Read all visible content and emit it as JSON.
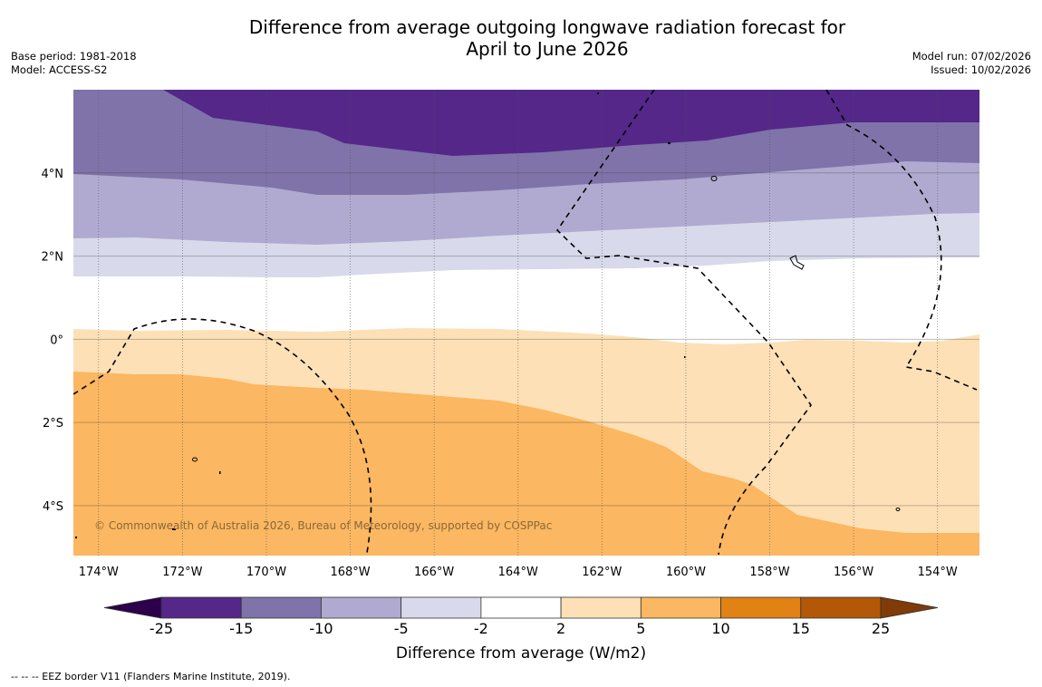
{
  "title": {
    "line1": "Difference from average outgoing longwave radiation forecast for",
    "line2": "April to June 2026"
  },
  "meta_left": {
    "base_period": "Base period: 1981-2018",
    "model": "Model: ACCESS-S2"
  },
  "meta_right": {
    "model_run": "Model run: 07/02/2026",
    "issued": "Issued: 10/02/2026"
  },
  "map": {
    "copyright": "© Commonwealth of Australia 2026, Bureau of Meteorology, supported by COSPPac",
    "extent": {
      "lon_min": -174.6,
      "lon_max": -153.0,
      "lat_min": -5.2,
      "lat_max": 6.0
    },
    "lat_ticks": [
      {
        "value": 4,
        "label": "4°N"
      },
      {
        "value": 2,
        "label": "2°N"
      },
      {
        "value": 0,
        "label": "0°"
      },
      {
        "value": -2,
        "label": "2°S"
      },
      {
        "value": -4,
        "label": "4°S"
      }
    ],
    "lon_ticks": [
      {
        "value": -174,
        "label": "174°W"
      },
      {
        "value": -172,
        "label": "172°W"
      },
      {
        "value": -170,
        "label": "170°W"
      },
      {
        "value": -168,
        "label": "168°W"
      },
      {
        "value": -166,
        "label": "166°W"
      },
      {
        "value": -164,
        "label": "164°W"
      },
      {
        "value": -162,
        "label": "162°W"
      },
      {
        "value": -160,
        "label": "160°W"
      },
      {
        "value": -158,
        "label": "158°W"
      },
      {
        "value": -156,
        "label": "156°W"
      },
      {
        "value": -154,
        "label": "154°W"
      }
    ],
    "anomaly_bands": [
      {
        "range": "-25 to -15",
        "color": "#542788"
      },
      {
        "range": "-15 to -10",
        "color": "#7f73a9"
      },
      {
        "range": "-10 to -5",
        "color": "#b0aad0"
      },
      {
        "range": "-5 to -2",
        "color": "#d8daeb"
      },
      {
        "range": "-2 to 2",
        "color": "#ffffff"
      },
      {
        "range": "2 to 5",
        "color": "#fde0b6"
      },
      {
        "range": "5 to 10",
        "color": "#fbb761"
      }
    ]
  },
  "colorbar": {
    "ticks": [
      "-25",
      "-15",
      "-10",
      "-5",
      "-2",
      "2",
      "5",
      "10",
      "15",
      "25"
    ],
    "colors": [
      "#542788",
      "#7f73a9",
      "#b0aad0",
      "#d8daeb",
      "#ffffff",
      "#fde0b6",
      "#fbb761",
      "#e08214",
      "#b35806"
    ],
    "under_color": "#2d004b",
    "over_color": "#7f3b08",
    "label": "Difference from average (W/m2)"
  },
  "footnote": "--  --  -- EEZ border V11 (Flanders Marine Institute, 2019)."
}
